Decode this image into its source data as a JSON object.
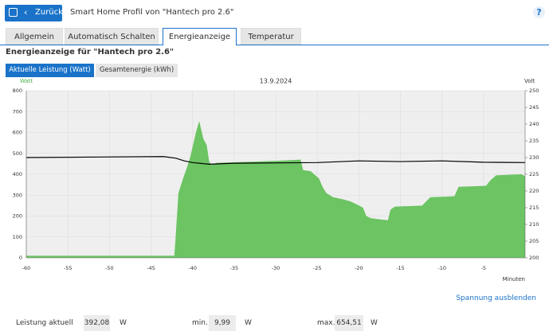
{
  "header": {
    "back": "Zurück",
    "title": "Smart Home Profil von \"Hantech pro 2.6\"",
    "help": "?"
  },
  "tabs": [
    "Allgemein",
    "Automatisch Schalten",
    "Energieanzeige",
    "Temperatur"
  ],
  "heading": "Energieanzeige für \"Hantech pro 2.6\"",
  "toggles": [
    "Aktuelle Leistung (Watt)",
    "Gesamtenergie (kWh)"
  ],
  "chart_data": {
    "type": "area_line",
    "title": "13.9.2024",
    "y_label": "Watt",
    "y2_label": "Volt",
    "x_label": "Minuten",
    "xlim": [
      -60,
      0
    ],
    "xticks": [
      -60,
      -55,
      -50,
      -45,
      -40,
      -35,
      -30,
      -25,
      -20,
      -15,
      -10,
      -5
    ],
    "ylim": [
      0,
      800
    ],
    "yticks": [
      0,
      100,
      200,
      300,
      400,
      500,
      600,
      700,
      800
    ],
    "y2lim": [
      200,
      250
    ],
    "y2ticks": [
      200,
      205,
      210,
      215,
      220,
      225,
      230,
      235,
      240,
      245,
      250
    ],
    "grid": true,
    "series": [
      {
        "color": "#6cc463",
        "x": [
          -60,
          -42.2,
          -42.1,
          -41.7,
          -41.1,
          -40.7,
          -40.3,
          -40.0,
          -39.6,
          -39.2,
          -38.7,
          -38.3,
          -38.0,
          -37.7,
          -37.1,
          -33.0,
          -29.6,
          -27.0,
          -26.7,
          -25.8,
          -24.8,
          -24.3,
          -23.9,
          -23.1,
          -21.9,
          -21.0,
          -20.2,
          -19.5,
          -19.1,
          -18.6,
          -17.6,
          -16.5,
          -16.2,
          -15.7,
          -12.4,
          -11.9,
          -11.4,
          -8.5,
          -8.0,
          -4.7,
          -4.2,
          -3.5,
          -0.4,
          0
        ],
        "values": [
          10,
          10,
          60,
          310,
          385,
          430,
          480,
          530,
          600,
          655,
          570,
          540,
          460,
          445,
          455,
          460,
          465,
          470,
          420,
          415,
          380,
          335,
          310,
          290,
          280,
          270,
          255,
          240,
          200,
          190,
          185,
          180,
          230,
          245,
          250,
          270,
          290,
          295,
          340,
          345,
          370,
          395,
          400,
          390
        ]
      },
      {
        "color": "#000000",
        "axis": "y2",
        "x": [
          -60,
          -43.5,
          -42,
          -41,
          -40,
          -38,
          -35,
          -25,
          -20,
          -15,
          -10,
          -5,
          0
        ],
        "values": [
          230,
          230.3,
          229.8,
          229,
          228.5,
          228,
          228.3,
          228.5,
          229,
          228.8,
          229,
          228.6,
          228.5
        ]
      }
    ]
  },
  "link": "Spannung ausblenden",
  "stats": [
    {
      "label": "Leistung aktuell",
      "value": "392,08",
      "unit": "W"
    },
    {
      "label": "min.",
      "value": "9,99",
      "unit": "W"
    },
    {
      "label": "max.",
      "value": "654,51",
      "unit": "W"
    }
  ]
}
